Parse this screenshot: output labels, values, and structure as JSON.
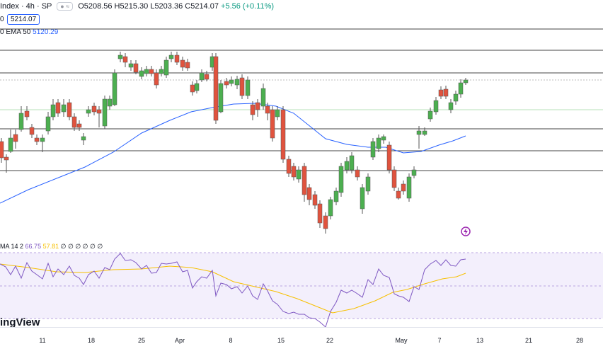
{
  "legend": {
    "symbol": "Index · 4h · SP",
    "ohlc": "O5208.56 H5215.30 L5203.36 C5214.07",
    "change": "+5.56 (+0.11%)",
    "price_box_prefix": "0",
    "price_box": "5214.07"
  },
  "ema": {
    "label": "0 EMA 50",
    "value": "5120.29"
  },
  "rsi": {
    "label": "MA 14 2",
    "value1": "66.75",
    "value2": "57.81",
    "extra": "∅ ∅ ∅ ∅ ∅ ∅"
  },
  "brand": "ingView",
  "x_axis": [
    "11",
    "18",
    "25",
    "Apr",
    "8",
    "15",
    "22",
    "May",
    "7",
    "13",
    "21",
    "28"
  ],
  "colors": {
    "up": "#4caf50",
    "down": "#e0533e",
    "ema": "#2962ff",
    "rsi": "#7e57c2",
    "rsi_ma": "#f7c000",
    "rsi_band": "#f3effc",
    "hline": "#333333",
    "green_line": "#b7e0b9"
  },
  "icons": [
    "flash-icon",
    "menu-dots-icon"
  ]
}
